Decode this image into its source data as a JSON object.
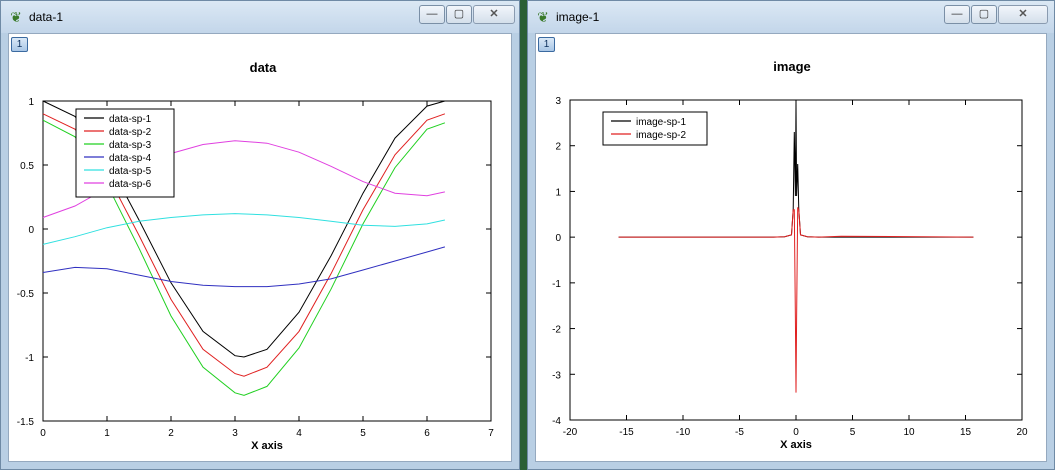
{
  "windows": [
    {
      "title": "data-1",
      "tab_label": "1",
      "controls": {
        "minimize": "—",
        "maximize": "▢",
        "close": "✕"
      }
    },
    {
      "title": "image-1",
      "tab_label": "1",
      "controls": {
        "minimize": "—",
        "maximize": "▢",
        "close": "✕"
      }
    }
  ],
  "chart_data": [
    {
      "type": "line",
      "title": "data",
      "xlabel": "X axis",
      "ylabel": "",
      "xlim": [
        0,
        7
      ],
      "ylim": [
        -1.5,
        1
      ],
      "xticks": [
        "0",
        "1",
        "2",
        "3",
        "4",
        "5",
        "6",
        "7"
      ],
      "yticks": [
        "1",
        "0.5",
        "0",
        "-0.5",
        "-1",
        "-1.5"
      ],
      "legend_position": "top-left",
      "series": [
        {
          "name": "data-sp-1",
          "color": "#000000",
          "x": [
            0,
            0.5,
            1,
            1.5,
            2,
            2.5,
            3,
            3.14,
            3.5,
            4,
            4.5,
            5,
            5.5,
            6,
            6.28
          ],
          "y": [
            1,
            0.88,
            0.54,
            0.07,
            -0.42,
            -0.8,
            -0.99,
            -1,
            -0.94,
            -0.65,
            -0.21,
            0.28,
            0.71,
            0.96,
            1
          ]
        },
        {
          "name": "data-sp-2",
          "color": "#e02020",
          "x": [
            0,
            0.5,
            1,
            1.5,
            2,
            2.5,
            3,
            3.14,
            3.5,
            4,
            4.5,
            5,
            5.5,
            6,
            6.28
          ],
          "y": [
            0.9,
            0.78,
            0.43,
            -0.05,
            -0.55,
            -0.94,
            -1.13,
            -1.15,
            -1.08,
            -0.8,
            -0.35,
            0.15,
            0.58,
            0.85,
            0.9
          ]
        },
        {
          "name": "data-sp-3",
          "color": "#20d020",
          "x": [
            0,
            0.5,
            1,
            1.5,
            2,
            2.5,
            3,
            3.14,
            3.5,
            4,
            4.5,
            5,
            5.5,
            6,
            6.28
          ],
          "y": [
            0.85,
            0.72,
            0.35,
            -0.15,
            -0.68,
            -1.08,
            -1.28,
            -1.3,
            -1.23,
            -0.93,
            -0.47,
            0.04,
            0.48,
            0.78,
            0.83
          ]
        },
        {
          "name": "data-sp-4",
          "color": "#3030c0",
          "x": [
            0,
            0.5,
            1,
            1.5,
            2,
            2.5,
            3,
            3.5,
            4,
            4.5,
            5,
            5.5,
            6,
            6.28
          ],
          "y": [
            -0.34,
            -0.3,
            -0.31,
            -0.36,
            -0.41,
            -0.44,
            -0.45,
            -0.45,
            -0.43,
            -0.39,
            -0.32,
            -0.25,
            -0.18,
            -0.14
          ]
        },
        {
          "name": "data-sp-5",
          "color": "#30e0e0",
          "x": [
            0,
            0.5,
            1,
            1.5,
            2,
            2.5,
            3,
            3.5,
            4,
            4.5,
            5,
            5.5,
            6,
            6.28
          ],
          "y": [
            -0.12,
            -0.06,
            0.01,
            0.06,
            0.09,
            0.11,
            0.12,
            0.11,
            0.09,
            0.06,
            0.03,
            0.02,
            0.04,
            0.07
          ]
        },
        {
          "name": "data-sp-6",
          "color": "#e040e0",
          "x": [
            0,
            0.5,
            1,
            1.5,
            2,
            2.5,
            3,
            3.5,
            4,
            4.5,
            5,
            5.5,
            6,
            6.28
          ],
          "y": [
            0.09,
            0.18,
            0.32,
            0.47,
            0.59,
            0.66,
            0.69,
            0.67,
            0.6,
            0.49,
            0.37,
            0.28,
            0.26,
            0.29
          ]
        }
      ]
    },
    {
      "type": "line",
      "title": "image",
      "xlabel": "X axis",
      "ylabel": "",
      "xlim": [
        -20,
        20
      ],
      "ylim": [
        -4,
        3
      ],
      "xticks": [
        "-20",
        "-15",
        "-10",
        "-5",
        "0",
        "5",
        "10",
        "15",
        "20"
      ],
      "yticks": [
        "3",
        "2",
        "1",
        "0",
        "-1",
        "-2",
        "-3",
        "-4"
      ],
      "legend_position": "top-left",
      "series": [
        {
          "name": "image-sp-1",
          "color": "#000000",
          "x": [
            -15.7,
            -2,
            -1,
            -0.4,
            -0.25,
            -0.15,
            -0.05,
            0,
            0.05,
            0.15,
            0.25,
            0.4,
            1,
            2,
            4,
            15.7
          ],
          "y": [
            0,
            0,
            0.01,
            0.05,
            0.6,
            2.3,
            0.9,
            3,
            0.9,
            1.6,
            0.6,
            0.05,
            0.01,
            0,
            0,
            0
          ]
        },
        {
          "name": "image-sp-2",
          "color": "#e02020",
          "x": [
            -15.7,
            -2,
            -1,
            -0.4,
            -0.25,
            -0.15,
            -0.05,
            0,
            0.05,
            0.15,
            0.25,
            0.4,
            1,
            2,
            4,
            15.7
          ],
          "y": [
            0,
            0,
            0.01,
            0.05,
            0.6,
            0.6,
            -1.8,
            -3.4,
            -1.8,
            0.65,
            0.6,
            0.05,
            0.01,
            0,
            0.02,
            0
          ]
        }
      ]
    }
  ]
}
